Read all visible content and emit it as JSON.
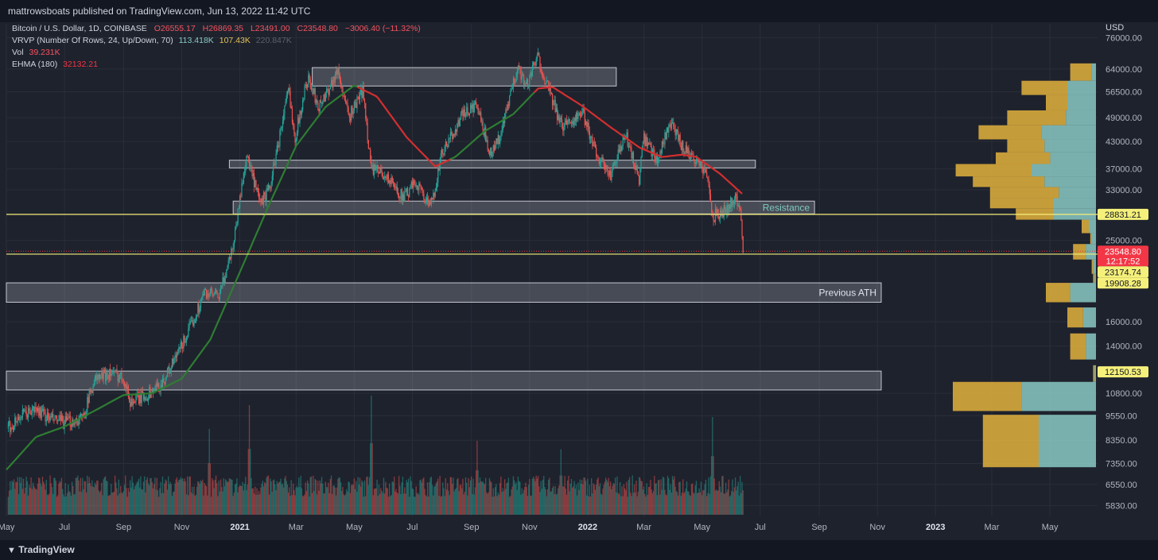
{
  "header": {
    "published": "mattrowsboats published on TradingView.com, Jun 13, 2022 11:42 UTC"
  },
  "legend": {
    "symbol": "Bitcoin / U.S. Dollar, 1D, COINBASE",
    "ohlc": {
      "o": "O26555.17",
      "h": "H26869.35",
      "l": "L23491.00",
      "c": "C23548.80",
      "change": "−3006.40 (−11.32%)"
    },
    "vrvp": {
      "label": "VRVP (Number Of Rows, 24, Up/Down, 70)",
      "up": "113.418K",
      "down": "107.43K",
      "total": "220.847K"
    },
    "vol": {
      "label": "Vol",
      "value": "39.231K"
    },
    "ehma": {
      "label": "EHMA (180)",
      "value": "32132.21"
    }
  },
  "footer": {
    "brand": "TradingView"
  },
  "chart_data": {
    "type": "candlestick",
    "currency_label": "USD",
    "yscale": "log",
    "ylim": [
      5500,
      82000
    ],
    "x_start": "2020-05-01",
    "x_end": "2023-06-20",
    "ticks": [
      {
        "label": "May",
        "date": "2020-05-01",
        "bold": false
      },
      {
        "label": "Jul",
        "date": "2020-07-01",
        "bold": false
      },
      {
        "label": "Sep",
        "date": "2020-09-01",
        "bold": false
      },
      {
        "label": "Nov",
        "date": "2020-11-01",
        "bold": false
      },
      {
        "label": "2021",
        "date": "2021-01-01",
        "bold": true
      },
      {
        "label": "Mar",
        "date": "2021-03-01",
        "bold": false
      },
      {
        "label": "May",
        "date": "2021-05-01",
        "bold": false
      },
      {
        "label": "Jul",
        "date": "2021-07-01",
        "bold": false
      },
      {
        "label": "Sep",
        "date": "2021-09-01",
        "bold": false
      },
      {
        "label": "Nov",
        "date": "2021-11-01",
        "bold": false
      },
      {
        "label": "2022",
        "date": "2022-01-01",
        "bold": true
      },
      {
        "label": "Mar",
        "date": "2022-03-01",
        "bold": false
      },
      {
        "label": "May",
        "date": "2022-05-01",
        "bold": false
      },
      {
        "label": "Jul",
        "date": "2022-07-01",
        "bold": false
      },
      {
        "label": "Sep",
        "date": "2022-09-01",
        "bold": false
      },
      {
        "label": "Nov",
        "date": "2022-11-01",
        "bold": false
      },
      {
        "label": "2023",
        "date": "2023-01-01",
        "bold": true
      },
      {
        "label": "Mar",
        "date": "2023-03-01",
        "bold": false
      },
      {
        "label": "May",
        "date": "2023-05-01",
        "bold": false
      }
    ],
    "y_ticks": [
      "76000.00",
      "64000.00",
      "56500.00",
      "49000.00",
      "43000.00",
      "37000.00",
      "33000.00",
      "25000.00",
      "16000.00",
      "14000.00",
      "10800.00",
      "9550.00",
      "8350.00",
      "7350.00",
      "6550.00",
      "5830.00"
    ],
    "price_labels": [
      {
        "value": 28831.21,
        "text": "28831.21",
        "bg": "#f5f07a"
      },
      {
        "value": 23548.8,
        "text": "23548.80",
        "sub": "12:17:52",
        "bg": "#f23645"
      },
      {
        "value": 23174.74,
        "text": "23174.74",
        "bg": "#f5f07a"
      },
      {
        "value": 19908.28,
        "text": "19908.28",
        "bg": "#f5f07a"
      },
      {
        "value": 12150.53,
        "text": "12150.53",
        "bg": "#f5f07a"
      }
    ],
    "zones": [
      {
        "x1": "2021-03-18",
        "x2": "2022-01-31",
        "lo": 58300,
        "hi": 64500,
        "label": ""
      },
      {
        "x1": "2020-12-21",
        "x2": "2022-06-26",
        "lo": 37200,
        "hi": 38800,
        "label": ""
      },
      {
        "x1": "2020-12-25",
        "x2": "2022-08-27",
        "lo": 28900,
        "hi": 31000,
        "label": "Resistance"
      },
      {
        "x1": "2020-05-01",
        "x2": "2022-11-05",
        "lo": 17800,
        "hi": 19800,
        "label": "Previous ATH"
      },
      {
        "x1": "2020-05-01",
        "x2": "2022-11-05",
        "lo": 11000,
        "hi": 12200,
        "label": ""
      }
    ],
    "hlines": [
      28831.21,
      23174.74
    ],
    "current_price": 23548.8,
    "price_path": [
      [
        "2020-05-01",
        8800
      ],
      [
        "2020-05-15",
        9500
      ],
      [
        "2020-06-01",
        9900
      ],
      [
        "2020-06-15",
        9400
      ],
      [
        "2020-07-01",
        9200
      ],
      [
        "2020-07-20",
        9400
      ],
      [
        "2020-08-01",
        11600
      ],
      [
        "2020-08-17",
        12100
      ],
      [
        "2020-09-01",
        11800
      ],
      [
        "2020-09-08",
        10300
      ],
      [
        "2020-09-25",
        10700
      ],
      [
        "2020-10-10",
        11300
      ],
      [
        "2020-10-25",
        13000
      ],
      [
        "2020-11-10",
        15500
      ],
      [
        "2020-11-25",
        18800
      ],
      [
        "2020-12-10",
        18300
      ],
      [
        "2020-12-25",
        24500
      ],
      [
        "2021-01-08",
        40000
      ],
      [
        "2021-01-22",
        30500
      ],
      [
        "2021-02-01",
        33000
      ],
      [
        "2021-02-21",
        57000
      ],
      [
        "2021-02-28",
        44000
      ],
      [
        "2021-03-13",
        61000
      ],
      [
        "2021-03-25",
        52000
      ],
      [
        "2021-04-14",
        63500
      ],
      [
        "2021-04-25",
        49000
      ],
      [
        "2021-05-10",
        57000
      ],
      [
        "2021-05-19",
        37000
      ],
      [
        "2021-06-01",
        36000
      ],
      [
        "2021-06-22",
        31500
      ],
      [
        "2021-07-05",
        34500
      ],
      [
        "2021-07-20",
        29800
      ],
      [
        "2021-08-01",
        40000
      ],
      [
        "2021-08-22",
        49500
      ],
      [
        "2021-09-06",
        52500
      ],
      [
        "2021-09-21",
        40500
      ],
      [
        "2021-10-01",
        44000
      ],
      [
        "2021-10-20",
        65500
      ],
      [
        "2021-10-28",
        58000
      ],
      [
        "2021-11-10",
        68500
      ],
      [
        "2021-11-20",
        58000
      ],
      [
        "2021-12-04",
        47000
      ],
      [
        "2021-12-27",
        50000
      ],
      [
        "2022-01-10",
        40500
      ],
      [
        "2022-01-24",
        35500
      ],
      [
        "2022-02-10",
        44500
      ],
      [
        "2022-02-24",
        35000
      ],
      [
        "2022-03-01",
        43500
      ],
      [
        "2022-03-15",
        39000
      ],
      [
        "2022-03-28",
        47500
      ],
      [
        "2022-04-10",
        42000
      ],
      [
        "2022-04-26",
        38500
      ],
      [
        "2022-05-05",
        36500
      ],
      [
        "2022-05-12",
        28500
      ],
      [
        "2022-05-25",
        29500
      ],
      [
        "2022-06-06",
        31500
      ],
      [
        "2022-06-11",
        28800
      ],
      [
        "2022-06-13",
        23548
      ]
    ],
    "ehma_path": [
      [
        "2020-05-01",
        7100
      ],
      [
        "2020-06-01",
        8500
      ],
      [
        "2020-07-01",
        9000
      ],
      [
        "2020-08-01",
        9800
      ],
      [
        "2020-09-01",
        10700
      ],
      [
        "2020-10-01",
        10800
      ],
      [
        "2020-11-01",
        11700
      ],
      [
        "2020-12-01",
        14500
      ],
      [
        "2021-01-01",
        21000
      ],
      [
        "2021-02-01",
        30500
      ],
      [
        "2021-03-01",
        42000
      ],
      [
        "2021-04-01",
        52000
      ],
      [
        "2021-05-01",
        58500
      ],
      [
        "2021-05-25",
        55000
      ],
      [
        "2021-06-25",
        44000
      ],
      [
        "2021-07-25",
        37500
      ],
      [
        "2021-08-15",
        39500
      ],
      [
        "2021-09-15",
        45500
      ],
      [
        "2021-10-15",
        50000
      ],
      [
        "2021-11-10",
        57500
      ],
      [
        "2021-11-25",
        58000
      ],
      [
        "2021-12-25",
        52500
      ],
      [
        "2022-01-25",
        46500
      ],
      [
        "2022-02-25",
        41500
      ],
      [
        "2022-03-20",
        39500
      ],
      [
        "2022-04-10",
        40000
      ],
      [
        "2022-04-25",
        39500
      ],
      [
        "2022-05-20",
        36000
      ],
      [
        "2022-06-13",
        32132
      ]
    ],
    "ehma_red_segments": [
      [
        "2021-05-05",
        "2021-08-10"
      ],
      [
        "2021-11-08",
        "2022-06-13"
      ]
    ],
    "volume_spikes": [
      {
        "date": "2020-11-30",
        "h": 0.72
      },
      {
        "date": "2021-01-11",
        "h": 0.92
      },
      {
        "date": "2021-05-19",
        "h": 1.0
      },
      {
        "date": "2021-09-07",
        "h": 0.62
      },
      {
        "date": "2021-12-04",
        "h": 0.55
      },
      {
        "date": "2022-05-12",
        "h": 0.82
      }
    ],
    "vrvp_rows": [
      {
        "lo": 60000,
        "hi": 66000,
        "up": 0.18,
        "down": 0.03
      },
      {
        "lo": 55500,
        "hi": 60000,
        "up": 0.52,
        "down": 0.2
      },
      {
        "lo": 51000,
        "hi": 55500,
        "up": 0.35,
        "down": 0.2
      },
      {
        "lo": 47000,
        "hi": 51000,
        "up": 0.62,
        "down": 0.21
      },
      {
        "lo": 43500,
        "hi": 47000,
        "up": 0.82,
        "down": 0.38
      },
      {
        "lo": 40500,
        "hi": 43500,
        "up": 0.62,
        "down": 0.36
      },
      {
        "lo": 38000,
        "hi": 40500,
        "up": 0.7,
        "down": 0.32
      },
      {
        "lo": 35500,
        "hi": 38000,
        "up": 0.98,
        "down": 0.45
      },
      {
        "lo": 33500,
        "hi": 35500,
        "up": 0.86,
        "down": 0.36
      },
      {
        "lo": 31500,
        "hi": 33500,
        "up": 0.74,
        "down": 0.26
      },
      {
        "lo": 29800,
        "hi": 31500,
        "up": 0.74,
        "down": 0.3
      },
      {
        "lo": 28000,
        "hi": 29800,
        "up": 0.56,
        "down": 0.3
      },
      {
        "lo": 26000,
        "hi": 28000,
        "up": 0.1,
        "down": 0.05
      },
      {
        "lo": 24500,
        "hi": 26000,
        "up": 0.04,
        "down": 0.03
      },
      {
        "lo": 22500,
        "hi": 24500,
        "up": 0.16,
        "down": 0.07
      },
      {
        "lo": 20800,
        "hi": 22500,
        "up": 0.03,
        "down": 0.02
      },
      {
        "lo": 19800,
        "hi": 20800,
        "up": 0.02,
        "down": 0.01
      },
      {
        "lo": 17800,
        "hi": 19800,
        "up": 0.35,
        "down": 0.18
      },
      {
        "lo": 15500,
        "hi": 17300,
        "up": 0.2,
        "down": 0.09
      },
      {
        "lo": 13000,
        "hi": 15000,
        "up": 0.18,
        "down": 0.07
      },
      {
        "lo": 11500,
        "hi": 12600,
        "up": 0.02,
        "down": 0.01
      },
      {
        "lo": 9800,
        "hi": 11500,
        "up": 1.0,
        "down": 0.52
      },
      {
        "lo": 7200,
        "hi": 9600,
        "up": 0.79,
        "down": 0.4
      }
    ]
  }
}
